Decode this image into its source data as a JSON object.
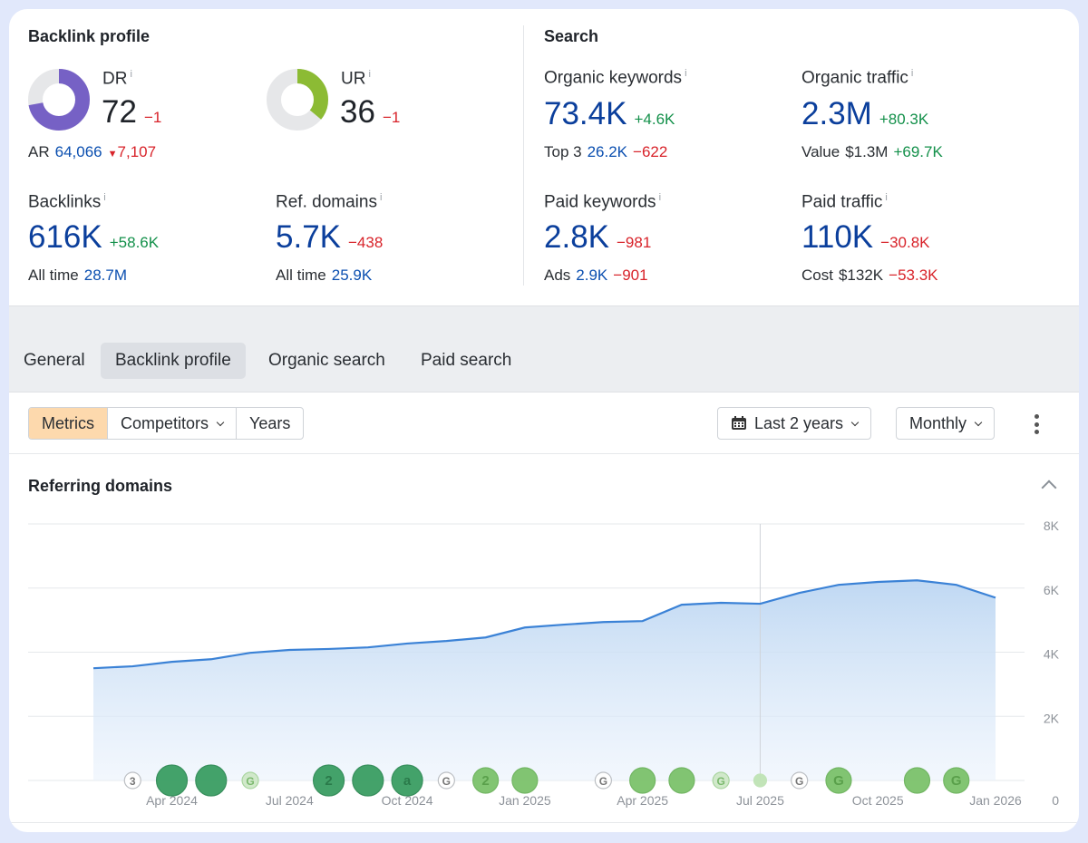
{
  "backlink_profile": {
    "title": "Backlink profile",
    "dr": {
      "label": "DR",
      "info": "i",
      "value": "72",
      "delta": "−1",
      "gauge_percent": 72,
      "color": "#7661c5"
    },
    "ur": {
      "label": "UR",
      "info": "i",
      "value": "36",
      "delta": "−1",
      "gauge_percent": 36,
      "color": "#8cbb34"
    },
    "ar": {
      "label": "AR",
      "value": "64,066",
      "delta": "7,107"
    },
    "backlinks": {
      "label": "Backlinks",
      "info": "i",
      "value": "616K",
      "delta": "+58.6K",
      "sub_label": "All time",
      "sub_value": "28.7M"
    },
    "ref_domains": {
      "label": "Ref. domains",
      "info": "i",
      "value": "5.7K",
      "delta": "−438",
      "sub_label": "All time",
      "sub_value": "25.9K"
    }
  },
  "search": {
    "title": "Search",
    "organic_keywords": {
      "label": "Organic keywords",
      "info": "i",
      "value": "73.4K",
      "delta": "+4.6K",
      "sub_label": "Top 3",
      "sub_value": "26.2K",
      "sub_delta": "−622"
    },
    "organic_traffic": {
      "label": "Organic traffic",
      "info": "i",
      "value": "2.3M",
      "delta": "+80.3K",
      "sub_label": "Value",
      "sub_value": "$1.3M",
      "sub_delta": "+69.7K"
    },
    "paid_keywords": {
      "label": "Paid keywords",
      "info": "i",
      "value": "2.8K",
      "delta": "−981",
      "sub_label": "Ads",
      "sub_value": "2.9K",
      "sub_delta": "−901"
    },
    "paid_traffic": {
      "label": "Paid traffic",
      "info": "i",
      "value": "110K",
      "delta": "−30.8K",
      "sub_label": "Cost",
      "sub_value": "$132K",
      "sub_delta": "−53.3K"
    }
  },
  "tabs": [
    {
      "label": "General"
    },
    {
      "label": "Backlink profile",
      "active": true
    },
    {
      "label": "Organic search"
    },
    {
      "label": "Paid search"
    }
  ],
  "toolbar": {
    "segments": [
      {
        "label": "Metrics",
        "active": true
      },
      {
        "label": "Competitors"
      },
      {
        "label": "Years"
      }
    ],
    "period": "Last 2 years",
    "interval": "Monthly"
  },
  "chart_section": {
    "title": "Referring domains"
  },
  "chart_data": {
    "type": "area",
    "title": "Referring domains",
    "x": [
      "2024-02",
      "2024-03",
      "2024-04",
      "2024-05",
      "2024-06",
      "2024-07",
      "2024-08",
      "2024-09",
      "2024-10",
      "2024-11",
      "2024-12",
      "2025-01",
      "2025-02",
      "2025-03",
      "2025-04",
      "2025-05",
      "2025-06",
      "2025-07",
      "2025-08",
      "2025-09",
      "2025-10",
      "2025-11",
      "2025-12",
      "2026-01"
    ],
    "values": [
      3500,
      3560,
      3700,
      3780,
      3980,
      4070,
      4100,
      4150,
      4270,
      4350,
      4460,
      4770,
      4860,
      4940,
      4970,
      5480,
      5540,
      5510,
      5850,
      6100,
      6190,
      6240,
      6100,
      5700
    ],
    "x_tick_labels": [
      "Apr 2024",
      "Jul 2024",
      "Oct 2024",
      "Jan 2025",
      "Apr 2025",
      "Jul 2025",
      "Oct 2025",
      "Jan 2026"
    ],
    "y_tick_labels": [
      "0",
      "2K",
      "4K",
      "6K",
      "8K"
    ],
    "ylim": [
      0,
      8000
    ],
    "y_axis_position": "right",
    "grid": true,
    "line_color": "#3b82d6",
    "hover_x": "2025-07",
    "annotations": [
      {
        "x": "2024-03",
        "label": "3",
        "style": "outline"
      },
      {
        "x": "2024-04",
        "label": "",
        "style": "dark"
      },
      {
        "x": "2024-05",
        "label": "",
        "style": "dark"
      },
      {
        "x": "2024-06",
        "label": "G",
        "style": "light-small"
      },
      {
        "x": "2024-08",
        "label": "2",
        "style": "dark"
      },
      {
        "x": "2024-09",
        "label": "",
        "style": "dark"
      },
      {
        "x": "2024-10",
        "label": "a",
        "style": "dark"
      },
      {
        "x": "2024-11",
        "label": "G",
        "style": "outline"
      },
      {
        "x": "2024-12",
        "label": "2",
        "style": "medium"
      },
      {
        "x": "2025-01",
        "label": "",
        "style": "medium"
      },
      {
        "x": "2025-03",
        "label": "G",
        "style": "outline"
      },
      {
        "x": "2025-04",
        "label": "",
        "style": "medium"
      },
      {
        "x": "2025-05",
        "label": "",
        "style": "medium"
      },
      {
        "x": "2025-06",
        "label": "G",
        "style": "light-small"
      },
      {
        "x": "2025-07",
        "label": "",
        "style": "tiny"
      },
      {
        "x": "2025-08",
        "label": "G",
        "style": "outline"
      },
      {
        "x": "2025-09",
        "label": "G",
        "style": "medium"
      },
      {
        "x": "2025-11",
        "label": "",
        "style": "medium"
      },
      {
        "x": "2025-12",
        "label": "G",
        "style": "medium"
      }
    ]
  }
}
